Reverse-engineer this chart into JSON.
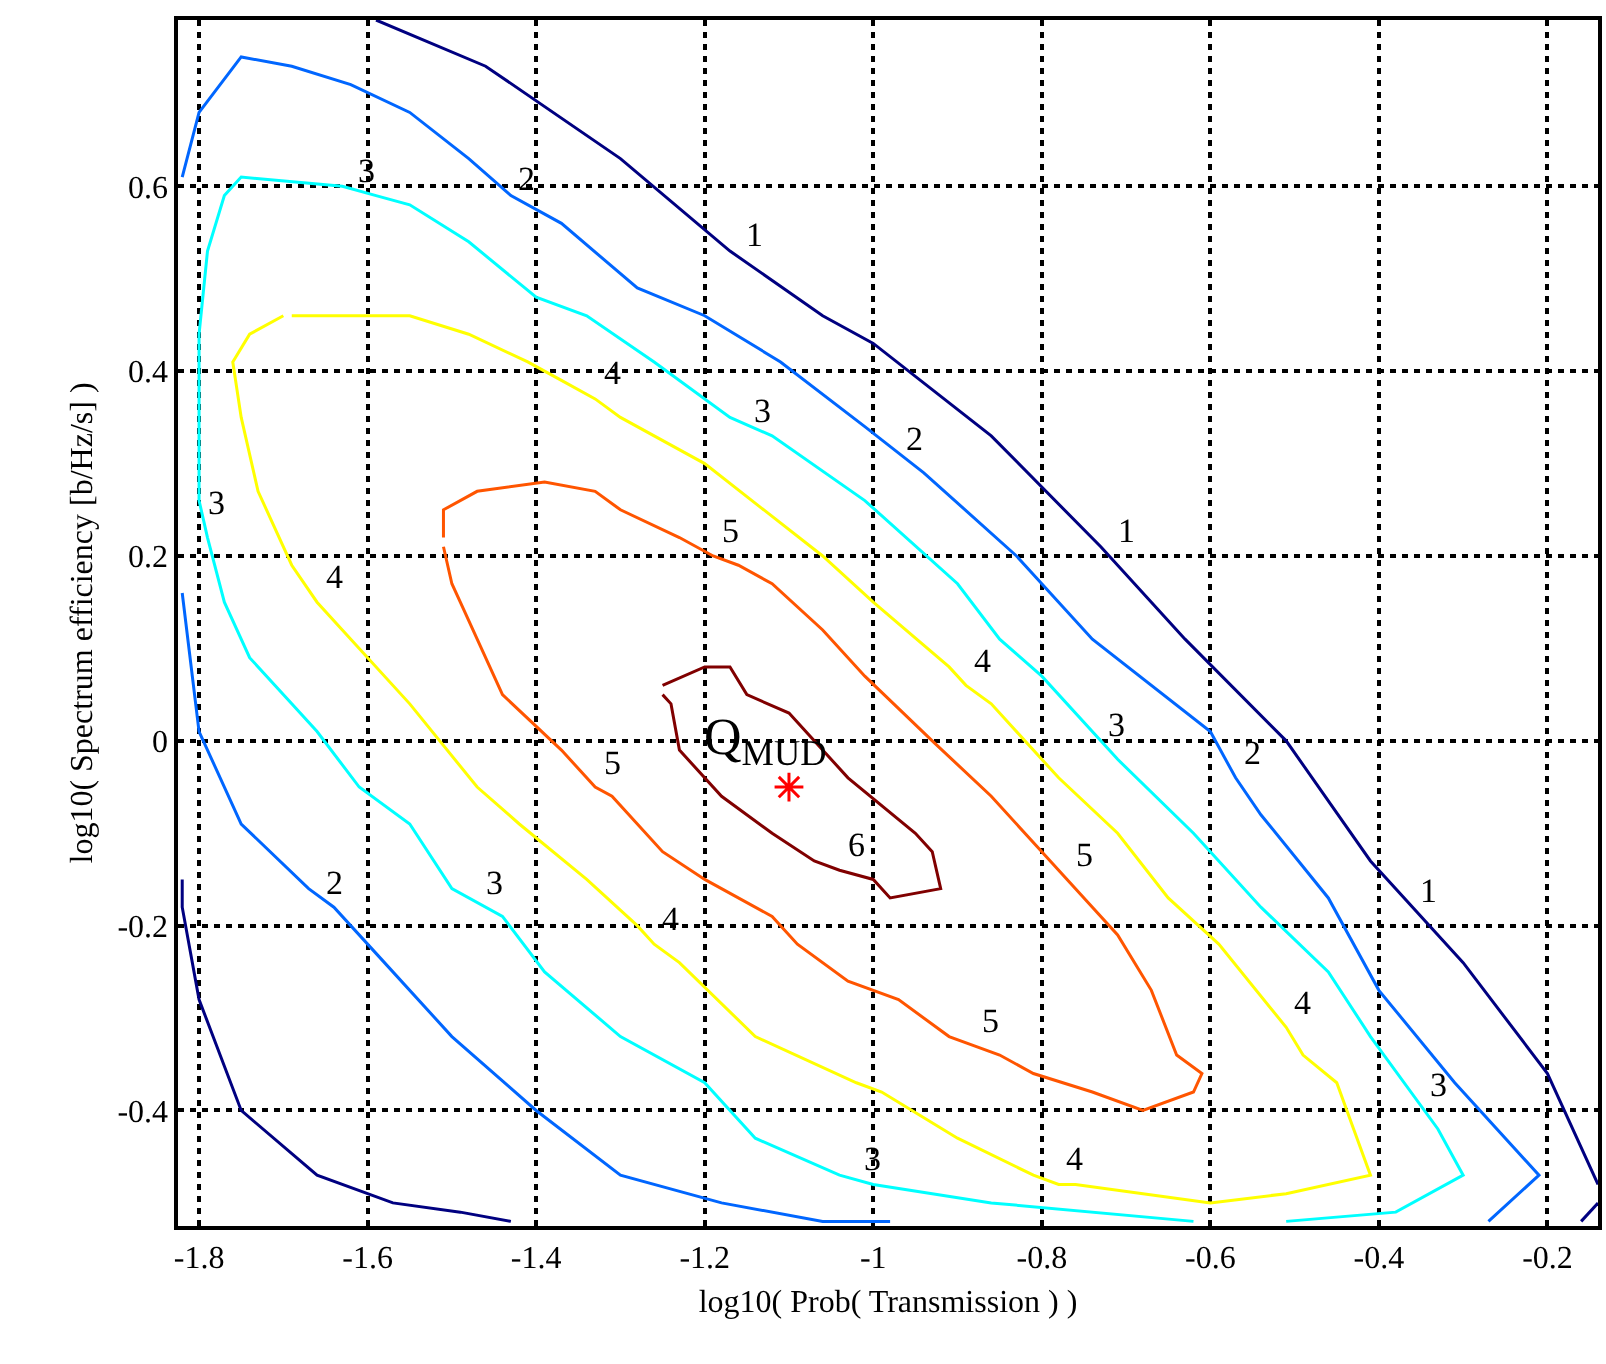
{
  "chart_data": {
    "type": "line",
    "xlabel": "log10( Prob( Transmission ) )",
    "ylabel": "log10( Spectrum efficiency [b/Hz/s] )",
    "xlim": [
      -1.825,
      -0.14
    ],
    "ylim": [
      -0.525,
      0.78
    ],
    "xticks": [
      -1.8,
      -1.6,
      -1.4,
      -1.2,
      -1,
      -0.8,
      -0.6,
      -0.4,
      -0.2
    ],
    "yticks": [
      -0.4,
      -0.2,
      0,
      0.2,
      0.4,
      0.6
    ],
    "grid": true,
    "series": [
      {
        "color": "#000080",
        "x": [
          -1.59,
          -1.46,
          -1.3,
          -1.17,
          -1.06,
          -1.0,
          -0.86,
          -0.73,
          -0.63,
          -0.51,
          -0.41,
          -0.3,
          -0.2,
          -0.14,
          null,
          -0.14,
          -0.16,
          null,
          -1.82,
          -1.82,
          -1.8,
          -1.75,
          -1.66,
          -1.57,
          -1.49,
          -1.43
        ],
        "values": [
          0.78,
          0.73,
          0.63,
          0.53,
          0.46,
          0.43,
          0.33,
          0.21,
          0.11,
          0.0,
          -0.13,
          -0.24,
          -0.36,
          -0.48,
          null,
          -0.5,
          -0.52,
          null,
          -0.15,
          -0.18,
          -0.28,
          -0.4,
          -0.47,
          -0.5,
          -0.51,
          -0.52
        ]
      },
      {
        "color": "#0066ff",
        "x": [
          -1.82,
          -1.8,
          -1.75,
          -1.69,
          -1.62,
          -1.55,
          -1.48,
          -1.43,
          -1.37,
          -1.28,
          -1.2,
          -1.11,
          -1.01,
          -0.94,
          -0.83,
          -0.74,
          -0.6,
          -0.57,
          -0.54,
          -0.46,
          -0.4,
          -0.31,
          -0.21,
          -0.27,
          null,
          -1.82,
          -1.8,
          -1.75,
          -1.67,
          -1.64,
          -1.59,
          -1.5,
          -1.4,
          -1.3,
          -1.18,
          -1.06,
          -0.98
        ],
        "values": [
          0.61,
          0.68,
          0.74,
          0.73,
          0.71,
          0.68,
          0.63,
          0.59,
          0.56,
          0.49,
          0.46,
          0.41,
          0.34,
          0.29,
          0.2,
          0.11,
          0.01,
          -0.04,
          -0.08,
          -0.17,
          -0.27,
          -0.37,
          -0.47,
          -0.52,
          null,
          0.16,
          0.01,
          -0.09,
          -0.16,
          -0.18,
          -0.23,
          -0.32,
          -0.4,
          -0.47,
          -0.5,
          -0.52,
          -0.52
        ]
      },
      {
        "color": "#00ffff",
        "x": [
          -0.62,
          -0.86,
          -1.0,
          -1.04,
          -1.14,
          -1.2,
          -1.3,
          -1.39,
          -1.44,
          -1.5,
          -1.55,
          -1.61,
          -1.66,
          -1.69,
          -1.74,
          -1.77,
          -1.79,
          -1.8,
          -1.8,
          -1.79,
          -1.77,
          -1.75,
          -1.63,
          -1.59,
          -1.55,
          -1.48,
          -1.4,
          -1.34,
          -1.26,
          -1.17,
          -1.12,
          -1.01,
          -0.9,
          -0.85,
          -0.8,
          -0.71,
          -0.62,
          -0.54,
          -0.46,
          -0.41,
          -0.33,
          -0.3,
          -0.38,
          -0.51
        ],
        "values": [
          -0.52,
          -0.5,
          -0.48,
          -0.47,
          -0.43,
          -0.37,
          -0.32,
          -0.25,
          -0.19,
          -0.16,
          -0.09,
          -0.05,
          0.01,
          0.04,
          0.09,
          0.15,
          0.22,
          0.26,
          0.44,
          0.53,
          0.59,
          0.61,
          0.6,
          0.59,
          0.58,
          0.54,
          0.48,
          0.46,
          0.41,
          0.35,
          0.33,
          0.26,
          0.17,
          0.11,
          0.07,
          -0.02,
          -0.1,
          -0.18,
          -0.25,
          -0.32,
          -0.42,
          -0.47,
          -0.51,
          -0.52
        ]
      },
      {
        "color": "#ffff00",
        "x": [
          -1.69,
          -1.55,
          -1.48,
          -1.41,
          -1.37,
          -1.33,
          -1.3,
          -1.2,
          -1.06,
          -1.0,
          -0.91,
          -0.89,
          -0.86,
          -0.78,
          -0.71,
          -0.65,
          -0.59,
          -0.51,
          -0.49,
          -0.45,
          -0.43,
          -0.41,
          -0.51,
          -0.6,
          -0.76,
          -0.78,
          -0.81,
          -0.9,
          -0.99,
          -1.02,
          -1.14,
          -1.23,
          -1.26,
          -1.28,
          -1.34,
          -1.42,
          -1.47,
          -1.55,
          -1.63,
          -1.66,
          -1.69,
          -1.73,
          -1.75,
          -1.76,
          -1.74,
          -1.7
        ],
        "values": [
          0.46,
          0.46,
          0.44,
          0.41,
          0.39,
          0.37,
          0.35,
          0.3,
          0.2,
          0.15,
          0.08,
          0.06,
          0.04,
          -0.04,
          -0.1,
          -0.17,
          -0.22,
          -0.31,
          -0.34,
          -0.37,
          -0.42,
          -0.47,
          -0.49,
          -0.5,
          -0.48,
          -0.48,
          -0.47,
          -0.43,
          -0.38,
          -0.37,
          -0.32,
          -0.24,
          -0.22,
          -0.2,
          -0.15,
          -0.09,
          -0.05,
          0.04,
          0.12,
          0.15,
          0.19,
          0.27,
          0.35,
          0.41,
          0.44,
          0.46
        ]
      },
      {
        "color": "#ff5500",
        "x": [
          -1.51,
          -1.51,
          -1.47,
          -1.39,
          -1.33,
          -1.3,
          -1.23,
          -1.19,
          -1.16,
          -1.12,
          -1.06,
          -1.01,
          -0.93,
          -0.86,
          -0.8,
          -0.77,
          -0.75,
          -0.71,
          -0.67,
          -0.64,
          -0.61,
          -0.62,
          -0.68,
          -0.74,
          -0.81,
          -0.85,
          -0.88,
          -0.91,
          -0.97,
          -1.03,
          -1.09,
          -1.12,
          -1.2,
          -1.25,
          -1.31,
          -1.33,
          -1.37,
          -1.44,
          -1.49,
          -1.5,
          -1.51
        ],
        "values": [
          0.22,
          0.25,
          0.27,
          0.28,
          0.27,
          0.25,
          0.22,
          0.2,
          0.19,
          0.17,
          0.12,
          0.07,
          0.0,
          -0.06,
          -0.12,
          -0.15,
          -0.17,
          -0.21,
          -0.27,
          -0.34,
          -0.36,
          -0.38,
          -0.4,
          -0.38,
          -0.36,
          -0.34,
          -0.33,
          -0.32,
          -0.28,
          -0.26,
          -0.22,
          -0.19,
          -0.15,
          -0.12,
          -0.06,
          -0.05,
          -0.01,
          0.05,
          0.15,
          0.17,
          0.21
        ]
      },
      {
        "color": "#800000",
        "x": [
          -1.25,
          -1.2,
          -1.17,
          -1.15,
          -1.1,
          -1.03,
          -0.95,
          -0.93,
          -0.92,
          -0.98,
          -1.0,
          -1.04,
          -1.07,
          -1.12,
          -1.18,
          -1.23,
          -1.24,
          -1.25
        ],
        "values": [
          0.06,
          0.08,
          0.08,
          0.05,
          0.03,
          -0.04,
          -0.1,
          -0.12,
          -0.16,
          -0.17,
          -0.15,
          -0.14,
          -0.13,
          -0.1,
          -0.06,
          -0.01,
          0.04,
          0.05
        ]
      },
      {
        "type": "scatter",
        "marker": "cross",
        "color": "#ff0000",
        "x": [
          -1.1
        ],
        "values": [
          -0.05
        ]
      }
    ],
    "annotations": [
      {
        "text": "1",
        "x": -1.16,
        "y": 0.52
      },
      {
        "text": "1",
        "x": -0.72,
        "y": 0.2
      },
      {
        "text": "1",
        "x": -0.36,
        "y": -0.19
      },
      {
        "text": "2",
        "x": -1.43,
        "y": 0.58
      },
      {
        "text": "2",
        "x": -0.97,
        "y": 0.3
      },
      {
        "text": "2",
        "x": -0.57,
        "y": -0.04
      },
      {
        "text": "2",
        "x": -1.66,
        "y": -0.18
      },
      {
        "text": "3",
        "x": -1.62,
        "y": 0.59
      },
      {
        "text": "3",
        "x": -1.15,
        "y": 0.33
      },
      {
        "text": "3",
        "x": -0.73,
        "y": -0.01
      },
      {
        "text": "3",
        "x": -0.35,
        "y": -0.4
      },
      {
        "text": "3",
        "x": -1.02,
        "y": -0.48
      },
      {
        "text": "3",
        "x": -1.47,
        "y": -0.18
      },
      {
        "text": "3",
        "x": -1.8,
        "y": 0.23
      },
      {
        "text": "4",
        "x": -1.33,
        "y": 0.37
      },
      {
        "text": "4",
        "x": -0.89,
        "y": 0.06
      },
      {
        "text": "4",
        "x": -0.51,
        "y": -0.31
      },
      {
        "text": "4",
        "x": -0.78,
        "y": -0.48
      },
      {
        "text": "4",
        "x": -1.26,
        "y": -0.22
      },
      {
        "text": "4",
        "x": -1.66,
        "y": 0.15
      },
      {
        "text": "5",
        "x": -1.19,
        "y": 0.2
      },
      {
        "text": "5",
        "x": -0.77,
        "y": -0.15
      },
      {
        "text": "5",
        "x": -0.88,
        "y": -0.33
      },
      {
        "text": "5",
        "x": -1.33,
        "y": -0.05
      },
      {
        "text": "6",
        "x": -1.04,
        "y": -0.14
      },
      {
        "text": "Q$_{MUD}$",
        "x": -1.1,
        "y": -0.05
      }
    ]
  }
}
